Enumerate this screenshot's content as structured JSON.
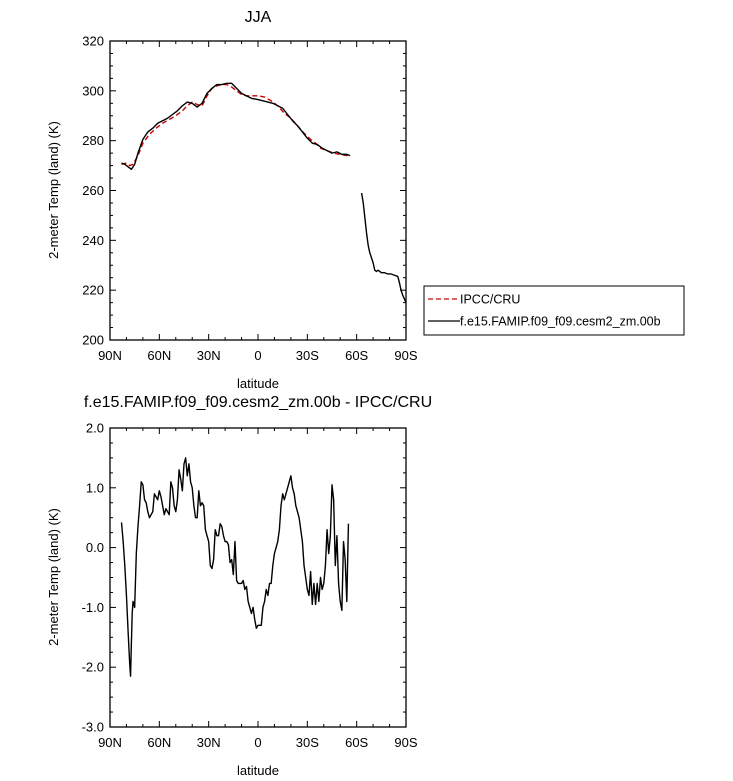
{
  "chart_data": [
    {
      "type": "line",
      "title": "JJA",
      "xlabel": "latitude",
      "ylabel": "2-meter Temp (land) (K)",
      "xlim": [
        90,
        -90
      ],
      "ylim": [
        200,
        320
      ],
      "x_ticks": [
        {
          "value": 90,
          "label": "90N"
        },
        {
          "value": 60,
          "label": "60N"
        },
        {
          "value": 30,
          "label": "30N"
        },
        {
          "value": 0,
          "label": "0"
        },
        {
          "value": -30,
          "label": "30S"
        },
        {
          "value": -60,
          "label": "60S"
        },
        {
          "value": -90,
          "label": "90S"
        }
      ],
      "y_ticks": [
        {
          "value": 200,
          "label": "200"
        },
        {
          "value": 220,
          "label": "220"
        },
        {
          "value": 240,
          "label": "240"
        },
        {
          "value": 260,
          "label": "260"
        },
        {
          "value": 280,
          "label": "280"
        },
        {
          "value": 300,
          "label": "300"
        },
        {
          "value": 320,
          "label": "320"
        }
      ],
      "legend_position": "right",
      "series": [
        {
          "name": "IPCC/CRU",
          "color": "#cc0000",
          "dash": "dashed",
          "x": [
            83,
            80,
            78,
            76,
            73,
            70,
            66,
            62,
            58,
            54,
            50,
            46,
            43,
            40,
            37,
            34,
            31,
            28,
            25,
            22,
            19,
            16,
            13,
            10,
            7,
            4,
            0,
            -4,
            -8,
            -12,
            -16,
            -20,
            -24,
            -28,
            -32,
            -35,
            -38,
            -42,
            -46,
            -50,
            -54,
            -56
          ],
          "y": [
            270.5,
            271,
            270,
            270.5,
            274,
            279,
            282.5,
            285,
            287,
            288.5,
            290,
            292,
            294,
            295.5,
            294.5,
            294,
            298,
            301,
            302,
            302.5,
            302.5,
            301.5,
            300,
            298.5,
            298,
            298,
            298,
            297.5,
            296,
            294,
            291,
            289,
            286,
            283,
            280.5,
            279,
            277,
            276,
            275,
            274.5,
            274,
            274.5
          ]
        },
        {
          "name": "f.e15.FAMIP.f09_f09.cesm2_zm.00b",
          "color": "#000000",
          "dash": "solid",
          "segments": [
            {
              "x": [
                83,
                81,
                79,
                77,
                75,
                73,
                70,
                67,
                64,
                61,
                58,
                55,
                52,
                49,
                46,
                43,
                40,
                37,
                34,
                31,
                28,
                25,
                22,
                19,
                16,
                13,
                10,
                7,
                4,
                0,
                -3,
                -6,
                -9,
                -12,
                -15,
                -18,
                -21,
                -24,
                -27,
                -30,
                -33,
                -36,
                -39,
                -42,
                -45,
                -48,
                -51,
                -54,
                -56
              ],
              "y": [
                271,
                270.5,
                269.5,
                268.5,
                270.5,
                275,
                280.5,
                283.5,
                285,
                287,
                288,
                289,
                290.5,
                292,
                294,
                295.5,
                295,
                293.5,
                295,
                299,
                301,
                302.5,
                302.5,
                303,
                303,
                301,
                299,
                298,
                297,
                296.5,
                296,
                295.5,
                295,
                294,
                293,
                290.5,
                288,
                286,
                283.5,
                281,
                279,
                278.5,
                277,
                276,
                275,
                275.5,
                274.5,
                274.5,
                274
              ]
            },
            {
              "x": [
                -63,
                -64,
                -65,
                -66,
                -67,
                -68,
                -69,
                -70,
                -71,
                -72,
                -73,
                -75,
                -77,
                -79,
                -81,
                -83,
                -85,
                -86,
                -87,
                -88,
                -89,
                -90
              ],
              "y": [
                259,
                255,
                249,
                243,
                238,
                235,
                233,
                231,
                228,
                227.5,
                228,
                227,
                227,
                226.5,
                226.5,
                226,
                225.5,
                223,
                220,
                218,
                216.5,
                215
              ]
            }
          ]
        }
      ]
    },
    {
      "type": "line",
      "title": "f.e15.FAMIP.f09_f09.cesm2_zm.00b - IPCC/CRU",
      "xlabel": "latitude",
      "ylabel": "2-meter Temp (land) (K)",
      "xlim": [
        90,
        -90
      ],
      "ylim": [
        -3,
        2
      ],
      "x_ticks": [
        {
          "value": 90,
          "label": "90N"
        },
        {
          "value": 60,
          "label": "60N"
        },
        {
          "value": 30,
          "label": "30N"
        },
        {
          "value": 0,
          "label": "0"
        },
        {
          "value": -30,
          "label": "30S"
        },
        {
          "value": -60,
          "label": "60S"
        },
        {
          "value": -90,
          "label": "90S"
        }
      ],
      "y_ticks": [
        {
          "value": -3,
          "label": "-3.0"
        },
        {
          "value": -2,
          "label": "-2.0"
        },
        {
          "value": -1,
          "label": "-1.0"
        },
        {
          "value": 0,
          "label": "0.0"
        },
        {
          "value": 1,
          "label": "1.0"
        },
        {
          "value": 2,
          "label": "2.0"
        }
      ],
      "series": [
        {
          "color": "#000000",
          "dash": "solid",
          "x": [
            83,
            82,
            81,
            80,
            79,
            78,
            77.5,
            77,
            76.5,
            76,
            75,
            74,
            73,
            72,
            71,
            70,
            69,
            68,
            67,
            66,
            65,
            64,
            63,
            62,
            61,
            60,
            59,
            58,
            57,
            56,
            55,
            54,
            53,
            52,
            51,
            50,
            49,
            48,
            47,
            46,
            45,
            44,
            43,
            42,
            41,
            40,
            39,
            38,
            37,
            36,
            35,
            34,
            33,
            32,
            31,
            30,
            29,
            28,
            27,
            26,
            25,
            24,
            23,
            22,
            21,
            20,
            19,
            18,
            17,
            16,
            15,
            14,
            13,
            12,
            11,
            10,
            9,
            8,
            7,
            6,
            5,
            4,
            3,
            2,
            1,
            0,
            -1,
            -2,
            -3,
            -4,
            -5,
            -6,
            -7,
            -8,
            -9,
            -10,
            -11,
            -12,
            -13,
            -14,
            -15,
            -16,
            -17,
            -18,
            -19,
            -20,
            -21,
            -22,
            -23,
            -24,
            -25,
            -26,
            -27,
            -28,
            -29,
            -30,
            -31,
            -32,
            -33,
            -34,
            -35,
            -36,
            -37,
            -38,
            -39,
            -40,
            -41,
            -42,
            -43,
            -44,
            -45,
            -46,
            -47,
            -48,
            -49,
            -50,
            -51,
            -52,
            -53,
            -54,
            -55
          ],
          "y": [
            0.42,
            0.1,
            -0.3,
            -0.8,
            -1.4,
            -1.95,
            -2.15,
            -1.6,
            -1.1,
            -0.9,
            -1.0,
            -0.1,
            0.35,
            0.7,
            1.1,
            1.05,
            0.8,
            0.75,
            0.6,
            0.5,
            0.55,
            0.6,
            0.9,
            0.85,
            0.8,
            0.95,
            0.85,
            0.7,
            0.55,
            0.65,
            0.6,
            0.55,
            1.1,
            1.0,
            0.7,
            0.6,
            0.8,
            1.3,
            1.15,
            0.95,
            1.4,
            1.5,
            1.2,
            1.4,
            1.1,
            1.0,
            0.7,
            0.5,
            0.5,
            0.95,
            0.7,
            0.75,
            0.7,
            0.3,
            0.2,
            0.1,
            -0.3,
            -0.35,
            -0.2,
            0.3,
            0.2,
            0.2,
            0.4,
            0.35,
            0.2,
            0.1,
            0.1,
            0.05,
            -0.25,
            -0.2,
            -0.45,
            0.1,
            -0.55,
            -0.6,
            -0.6,
            -0.6,
            -0.55,
            -0.7,
            -0.65,
            -0.9,
            -1.0,
            -1.1,
            -1.0,
            -1.2,
            -1.35,
            -1.3,
            -1.3,
            -1.3,
            -1.0,
            -0.9,
            -0.7,
            -0.8,
            -0.6,
            -0.6,
            -0.3,
            -0.1,
            0.0,
            0.1,
            0.3,
            0.7,
            0.9,
            0.8,
            0.9,
            1.0,
            1.1,
            1.2,
            1.0,
            0.9,
            0.7,
            0.6,
            0.5,
            0.3,
            0.1,
            -0.3,
            -0.5,
            -0.7,
            -0.8,
            -0.4,
            -0.95,
            -0.6,
            -0.95,
            -0.6,
            -0.9,
            -0.5,
            -0.7,
            -0.6,
            -0.3,
            0.3,
            -0.1,
            0.2,
            1.05,
            0.8,
            -0.3,
            0.2,
            -0.6,
            -0.9,
            -1.05,
            0.1,
            -0.2,
            -0.9,
            0.4
          ]
        }
      ]
    }
  ],
  "legend": {
    "items": [
      {
        "label": "IPCC/CRU",
        "color": "#cc0000",
        "dash": "dashed"
      },
      {
        "label": "f.e15.FAMIP.f09_f09.cesm2_zm.00b",
        "color": "#000000",
        "dash": "solid"
      }
    ]
  }
}
